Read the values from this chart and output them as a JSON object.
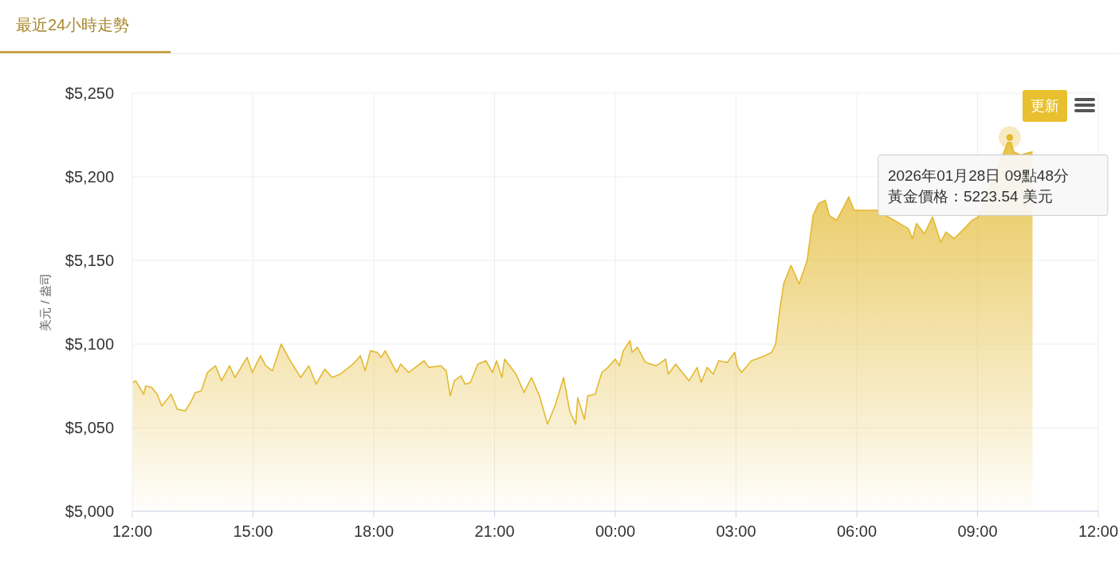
{
  "chart_data": {
    "type": "area",
    "title": "最近24小時走勢",
    "ylabel": "美元 / 盎司",
    "x": [
      "2026-01-27T12:01",
      "2026-01-27T12:05",
      "2026-01-27T12:17",
      "2026-01-27T12:20",
      "2026-01-27T12:29",
      "2026-01-27T12:37",
      "2026-01-27T12:44",
      "2026-01-27T12:58",
      "2026-01-27T13:07",
      "2026-01-27T13:19",
      "2026-01-27T13:28",
      "2026-01-27T13:34",
      "2026-01-27T13:43",
      "2026-01-27T13:52",
      "2026-01-27T14:04",
      "2026-01-27T14:13",
      "2026-01-27T14:25",
      "2026-01-27T14:33",
      "2026-01-27T14:51",
      "2026-01-27T14:59",
      "2026-01-27T15:11",
      "2026-01-27T15:19",
      "2026-01-27T15:29",
      "2026-01-27T15:42",
      "2026-01-27T15:54",
      "2026-01-27T16:11",
      "2026-01-27T16:23",
      "2026-01-27T16:34",
      "2026-01-27T16:47",
      "2026-01-27T16:58",
      "2026-01-27T17:10",
      "2026-01-27T17:29",
      "2026-01-27T17:40",
      "2026-01-27T17:47",
      "2026-01-27T17:55",
      "2026-01-27T18:05",
      "2026-01-27T18:11",
      "2026-01-27T18:17",
      "2026-01-27T18:34",
      "2026-01-27T18:40",
      "2026-01-27T18:52",
      "2026-01-27T19:15",
      "2026-01-27T19:22",
      "2026-01-27T19:40",
      "2026-01-27T19:48",
      "2026-01-27T19:54",
      "2026-01-27T20:00",
      "2026-01-27T20:10",
      "2026-01-27T20:16",
      "2026-01-27T20:24",
      "2026-01-27T20:35",
      "2026-01-27T20:47",
      "2026-01-27T20:57",
      "2026-01-27T21:03",
      "2026-01-27T21:11",
      "2026-01-27T21:15",
      "2026-01-27T21:32",
      "2026-01-27T21:44",
      "2026-01-27T21:55",
      "2026-01-27T22:07",
      "2026-01-27T22:19",
      "2026-01-27T22:31",
      "2026-01-27T22:43",
      "2026-01-27T22:52",
      "2026-01-27T23:01",
      "2026-01-27T23:04",
      "2026-01-27T23:14",
      "2026-01-27T23:19",
      "2026-01-27T23:30",
      "2026-01-27T23:40",
      "2026-01-27T23:49",
      "2026-01-28T00:00",
      "2026-01-28T00:06",
      "2026-01-28T00:12",
      "2026-01-28T00:22",
      "2026-01-28T00:25",
      "2026-01-28T00:33",
      "2026-01-28T00:45",
      "2026-01-28T01:01",
      "2026-01-28T01:15",
      "2026-01-28T01:19",
      "2026-01-28T01:30",
      "2026-01-28T01:50",
      "2026-01-28T02:02",
      "2026-01-28T02:08",
      "2026-01-28T02:17",
      "2026-01-28T02:26",
      "2026-01-28T02:34",
      "2026-01-28T02:47",
      "2026-01-28T02:58",
      "2026-01-28T03:02",
      "2026-01-28T03:08",
      "2026-01-28T03:23",
      "2026-01-28T03:43",
      "2026-01-28T03:53",
      "2026-01-28T03:59",
      "2026-01-28T04:05",
      "2026-01-28T04:11",
      "2026-01-28T04:22",
      "2026-01-28T04:34",
      "2026-01-28T04:46",
      "2026-01-28T04:55",
      "2026-01-28T05:03",
      "2026-01-28T05:13",
      "2026-01-28T05:19",
      "2026-01-28T05:30",
      "2026-01-28T05:42",
      "2026-01-28T05:48",
      "2026-01-28T05:56",
      "2026-01-28T06:30",
      "2026-01-28T07:17",
      "2026-01-28T07:23",
      "2026-01-28T07:29",
      "2026-01-28T07:41",
      "2026-01-28T07:53",
      "2026-01-28T08:05",
      "2026-01-28T08:13",
      "2026-01-28T08:25",
      "2026-01-28T08:40",
      "2026-01-28T08:52",
      "2026-01-28T09:01",
      "2026-01-28T09:48",
      "2026-01-28T09:54",
      "2026-01-28T10:04",
      "2026-01-28T10:13",
      "2026-01-28T10:22"
    ],
    "series": [
      {
        "color": "#e3b930",
        "values": [
          5077,
          5078,
          5070,
          5075,
          5074,
          5070,
          5063,
          5070,
          5061,
          5060,
          5066,
          5071,
          5072,
          5083,
          5087,
          5078,
          5087,
          5080,
          5092,
          5083,
          5093,
          5087,
          5084,
          5100,
          5091,
          5080,
          5087,
          5076,
          5085,
          5080,
          5082,
          5088,
          5093,
          5084,
          5096,
          5095,
          5092,
          5096,
          5083,
          5088,
          5083,
          5090,
          5086,
          5087,
          5084,
          5069,
          5078,
          5081,
          5076,
          5077,
          5088,
          5090,
          5083,
          5090,
          5080,
          5091,
          5082,
          5071,
          5080,
          5069,
          5052,
          5064,
          5080,
          5060,
          5052,
          5068,
          5055,
          5069,
          5070,
          5083,
          5086,
          5091,
          5087,
          5096,
          5102,
          5095,
          5098,
          5089,
          5087,
          5091,
          5082,
          5088,
          5078,
          5086,
          5077,
          5086,
          5082,
          5090,
          5089,
          5095,
          5087,
          5083,
          5090,
          5093,
          5095,
          5100,
          5120,
          5136,
          5147,
          5136,
          5150,
          5177,
          5184,
          5186,
          5177,
          5174,
          5183,
          5188,
          5180,
          5180,
          5169,
          5163,
          5172,
          5166,
          5176,
          5161,
          5167,
          5163,
          5169,
          5174,
          5176,
          5223.54,
          5215,
          5213,
          5214,
          5215
        ]
      }
    ],
    "xlim": [
      "2026-01-27T12:00",
      "2026-01-28T12:00"
    ],
    "xticks": [
      {
        "value": "2026-01-27T12:00",
        "label": "12:00"
      },
      {
        "value": "2026-01-27T15:00",
        "label": "15:00"
      },
      {
        "value": "2026-01-27T18:00",
        "label": "18:00"
      },
      {
        "value": "2026-01-27T21:00",
        "label": "21:00"
      },
      {
        "value": "2026-01-28T00:00",
        "label": "00:00"
      },
      {
        "value": "2026-01-28T03:00",
        "label": "03:00"
      },
      {
        "value": "2026-01-28T06:00",
        "label": "06:00"
      },
      {
        "value": "2026-01-28T09:00",
        "label": "09:00"
      },
      {
        "value": "2026-01-28T12:00",
        "label": "12:00"
      }
    ],
    "ylim": [
      5000,
      5250
    ],
    "yticks": [
      {
        "value": 5000,
        "label": "$5,000"
      },
      {
        "value": 5050,
        "label": "$5,050"
      },
      {
        "value": 5100,
        "label": "$5,100"
      },
      {
        "value": 5150,
        "label": "$5,150"
      },
      {
        "value": 5200,
        "label": "$5,200"
      },
      {
        "value": 5250,
        "label": "$5,250"
      }
    ],
    "grid": true,
    "annotations": [
      "更新",
      {
        "text": "2026年01月28日 09點48分",
        "x": "2026-01-28T09:48",
        "y": 5223.54
      },
      "黃金價格：5223.54 美元"
    ]
  }
}
